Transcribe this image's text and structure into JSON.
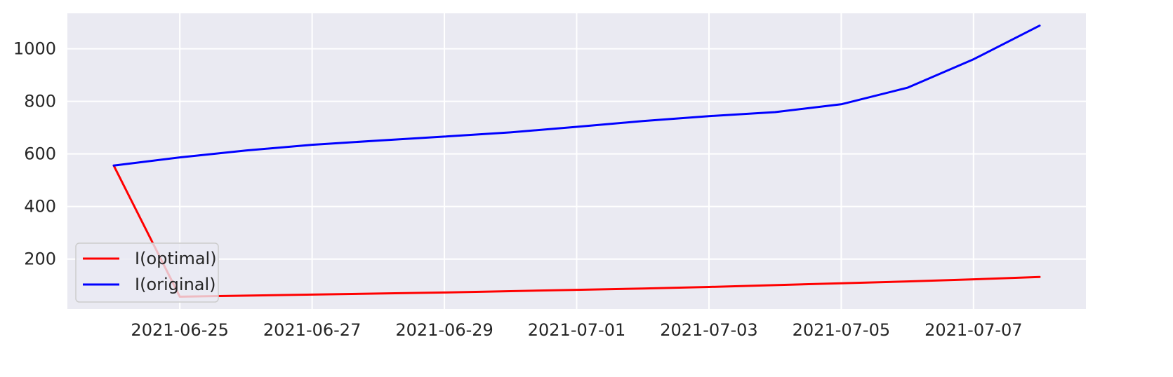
{
  "chart_data": {
    "type": "line",
    "title": "",
    "xlabel": "",
    "ylabel": "",
    "x": [
      "2021-06-24",
      "2021-06-25",
      "2021-06-26",
      "2021-06-27",
      "2021-06-28",
      "2021-06-29",
      "2021-06-30",
      "2021-07-01",
      "2021-07-02",
      "2021-07-03",
      "2021-07-04",
      "2021-07-05",
      "2021-07-06",
      "2021-07-07",
      "2021-07-08"
    ],
    "series": [
      {
        "name": "I(optimal)",
        "color": "#ff0000",
        "values": [
          556,
          57,
          61,
          65,
          69,
          73,
          78,
          83,
          88,
          94,
          101,
          108,
          115,
          123,
          132
        ]
      },
      {
        "name": "I(original)",
        "color": "#0000ff",
        "values": [
          556,
          587,
          613,
          635,
          651,
          666,
          682,
          703,
          725,
          744,
          759,
          789,
          852,
          960,
          1088
        ]
      }
    ],
    "xlim": [
      "2021-06-23 07:12",
      "2021-07-08 16:48"
    ],
    "ylim": [
      10,
      1135
    ],
    "x_ticks": [
      "2021-06-25",
      "2021-06-27",
      "2021-06-29",
      "2021-07-01",
      "2021-07-03",
      "2021-07-05",
      "2021-07-07"
    ],
    "y_ticks": [
      200,
      400,
      600,
      800,
      1000
    ],
    "grid": true,
    "legend_position": "lower-left",
    "background_color": "#eaeaf2",
    "grid_color": "#ffffff"
  }
}
